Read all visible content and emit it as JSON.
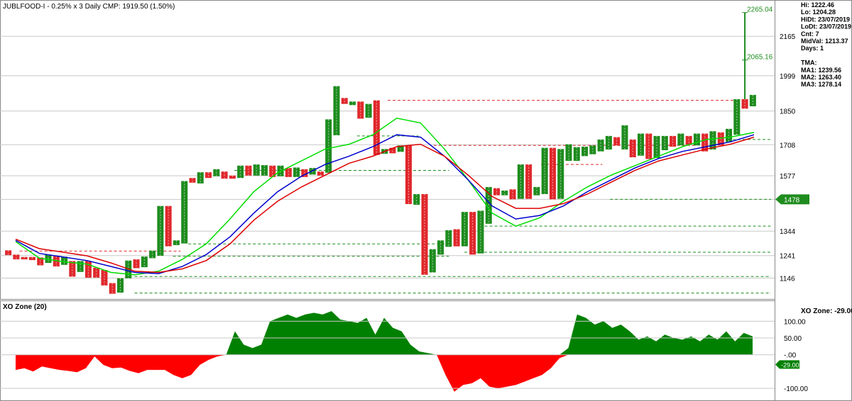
{
  "header": {
    "title": "JUBLFOOD-I - 0.25% x 3 Daily CMP: 1919.50 (1.50%)"
  },
  "info_panel": {
    "lines": [
      "Hi: 1222.46",
      "Lo: 1204.28",
      "HiDt: 23/07/2019",
      "LoDt: 23/07/2019",
      "Cnt: 7",
      "MidVal: 1213.37",
      "Days: 1",
      "",
      "TMA:",
      "MA1: 1239.56",
      "MA2: 1263.40",
      "MA3: 1278.14"
    ]
  },
  "xo_panel": {
    "title": "XO Zone (20)",
    "readout": "XO Zone: -29.00",
    "current_badge": "-29.00"
  },
  "colors": {
    "up": "#1e8c1e",
    "down": "#e0282c",
    "ma_fast": "#00dd00",
    "ma_mid": "#0000cc",
    "ma_slow": "#dd0000",
    "grid": "#c8c8c8"
  },
  "chart_data": [
    {
      "type": "point-and-figure",
      "title": "JUBLFOOD-I - 0.25% x 3 Daily CMP: 1919.50 (1.50%)",
      "y_ticks": [
        "2165",
        "1999",
        "1850",
        "1708",
        "1577",
        "1478",
        "1344",
        "1241",
        "1146"
      ],
      "ylim": [
        1070,
        2300
      ],
      "price_badge": "1478",
      "annotations": [
        "2265.04",
        "2065.16"
      ],
      "columns": [
        {
          "dir": "down",
          "low": 1243,
          "high": 1263
        },
        {
          "dir": "down",
          "low": 1225,
          "high": 1245
        },
        {
          "dir": "down",
          "low": 1225,
          "high": 1235
        },
        {
          "dir": "down",
          "low": 1222,
          "high": 1235
        },
        {
          "dir": "down",
          "low": 1200,
          "high": 1233
        },
        {
          "dir": "up",
          "low": 1210,
          "high": 1245
        },
        {
          "dir": "down",
          "low": 1195,
          "high": 1238
        },
        {
          "dir": "up",
          "low": 1202,
          "high": 1236
        },
        {
          "dir": "down",
          "low": 1152,
          "high": 1218
        },
        {
          "dir": "up",
          "low": 1172,
          "high": 1218
        },
        {
          "dir": "down",
          "low": 1148,
          "high": 1218
        },
        {
          "dir": "down",
          "low": 1148,
          "high": 1190
        },
        {
          "dir": "down",
          "low": 1115,
          "high": 1180
        },
        {
          "dir": "down",
          "low": 1080,
          "high": 1125
        },
        {
          "dir": "up",
          "low": 1085,
          "high": 1145
        },
        {
          "dir": "up",
          "low": 1145,
          "high": 1220
        },
        {
          "dir": "down",
          "low": 1188,
          "high": 1225
        },
        {
          "dir": "up",
          "low": 1192,
          "high": 1237
        },
        {
          "dir": "up",
          "low": 1230,
          "high": 1262
        },
        {
          "dir": "up",
          "low": 1240,
          "high": 1450
        },
        {
          "dir": "down",
          "low": 1280,
          "high": 1450
        },
        {
          "dir": "up",
          "low": 1285,
          "high": 1305
        },
        {
          "dir": "up",
          "low": 1292,
          "high": 1555
        },
        {
          "dir": "down",
          "low": 1548,
          "high": 1568
        },
        {
          "dir": "up",
          "low": 1545,
          "high": 1592
        },
        {
          "dir": "down",
          "low": 1568,
          "high": 1592
        },
        {
          "dir": "up",
          "low": 1575,
          "high": 1605
        },
        {
          "dir": "down",
          "low": 1565,
          "high": 1595
        },
        {
          "dir": "down",
          "low": 1565,
          "high": 1578
        },
        {
          "dir": "up",
          "low": 1568,
          "high": 1620
        },
        {
          "dir": "down",
          "low": 1578,
          "high": 1620
        },
        {
          "dir": "up",
          "low": 1578,
          "high": 1625
        },
        {
          "dir": "up",
          "low": 1578,
          "high": 1622
        },
        {
          "dir": "down",
          "low": 1572,
          "high": 1620
        },
        {
          "dir": "up",
          "low": 1575,
          "high": 1620
        },
        {
          "dir": "down",
          "low": 1572,
          "high": 1610
        },
        {
          "dir": "up",
          "low": 1572,
          "high": 1612
        },
        {
          "dir": "down",
          "low": 1572,
          "high": 1605
        },
        {
          "dir": "up",
          "low": 1582,
          "high": 1610
        },
        {
          "dir": "down",
          "low": 1578,
          "high": 1595
        },
        {
          "dir": "up",
          "low": 1590,
          "high": 1815
        },
        {
          "dir": "up",
          "low": 1748,
          "high": 1955
        },
        {
          "dir": "down",
          "low": 1880,
          "high": 1905
        },
        {
          "dir": "up",
          "low": 1875,
          "high": 1890
        },
        {
          "dir": "down",
          "low": 1818,
          "high": 1890
        },
        {
          "dir": "up",
          "low": 1822,
          "high": 1880
        },
        {
          "dir": "down",
          "low": 1665,
          "high": 1895
        },
        {
          "dir": "up",
          "low": 1670,
          "high": 1690
        },
        {
          "dir": "down",
          "low": 1672,
          "high": 1695
        },
        {
          "dir": "up",
          "low": 1678,
          "high": 1705
        },
        {
          "dir": "down",
          "low": 1458,
          "high": 1705
        },
        {
          "dir": "up",
          "low": 1455,
          "high": 1500
        },
        {
          "dir": "down",
          "low": 1160,
          "high": 1500
        },
        {
          "dir": "up",
          "low": 1170,
          "high": 1268
        },
        {
          "dir": "up",
          "low": 1245,
          "high": 1305
        },
        {
          "dir": "up",
          "low": 1278,
          "high": 1348
        },
        {
          "dir": "down",
          "low": 1280,
          "high": 1352
        },
        {
          "dir": "up",
          "low": 1280,
          "high": 1425
        },
        {
          "dir": "down",
          "low": 1245,
          "high": 1425
        },
        {
          "dir": "up",
          "low": 1250,
          "high": 1430
        },
        {
          "dir": "up",
          "low": 1375,
          "high": 1530
        },
        {
          "dir": "down",
          "low": 1495,
          "high": 1525
        },
        {
          "dir": "up",
          "low": 1495,
          "high": 1515
        },
        {
          "dir": "down",
          "low": 1478,
          "high": 1520
        },
        {
          "dir": "up",
          "low": 1480,
          "high": 1625
        },
        {
          "dir": "down",
          "low": 1480,
          "high": 1625
        },
        {
          "dir": "up",
          "low": 1495,
          "high": 1530
        },
        {
          "dir": "up",
          "low": 1500,
          "high": 1695
        },
        {
          "dir": "down",
          "low": 1478,
          "high": 1695
        },
        {
          "dir": "up",
          "low": 1480,
          "high": 1690
        },
        {
          "dir": "up",
          "low": 1640,
          "high": 1710
        },
        {
          "dir": "up",
          "low": 1640,
          "high": 1698
        },
        {
          "dir": "up",
          "low": 1660,
          "high": 1700
        },
        {
          "dir": "up",
          "low": 1668,
          "high": 1705
        },
        {
          "dir": "up",
          "low": 1680,
          "high": 1730
        },
        {
          "dir": "up",
          "low": 1688,
          "high": 1745
        },
        {
          "dir": "down",
          "low": 1705,
          "high": 1740
        },
        {
          "dir": "up",
          "low": 1688,
          "high": 1790
        },
        {
          "dir": "down",
          "low": 1655,
          "high": 1730
        },
        {
          "dir": "up",
          "low": 1662,
          "high": 1755
        },
        {
          "dir": "down",
          "low": 1648,
          "high": 1755
        },
        {
          "dir": "up",
          "low": 1652,
          "high": 1745
        },
        {
          "dir": "up",
          "low": 1685,
          "high": 1745
        },
        {
          "dir": "down",
          "low": 1700,
          "high": 1745
        },
        {
          "dir": "up",
          "low": 1705,
          "high": 1755
        },
        {
          "dir": "down",
          "low": 1708,
          "high": 1745
        },
        {
          "dir": "up",
          "low": 1705,
          "high": 1755
        },
        {
          "dir": "down",
          "low": 1680,
          "high": 1755
        },
        {
          "dir": "up",
          "low": 1688,
          "high": 1765
        },
        {
          "dir": "down",
          "low": 1705,
          "high": 1760
        },
        {
          "dir": "up",
          "low": 1720,
          "high": 1775
        },
        {
          "dir": "up",
          "low": 1750,
          "high": 1900
        },
        {
          "dir": "down",
          "low": 1860,
          "high": 1900
        },
        {
          "dir": "up",
          "low": 1870,
          "high": 1918
        }
      ],
      "spike": {
        "x_index": 92,
        "low": 1900,
        "mid": 2065.16,
        "high": 2265.04
      },
      "ma_series": [
        {
          "color_key": "ma_fast",
          "values": [
            1300,
            1230,
            1215,
            1205,
            1170,
            1160,
            1175,
            1225,
            1290,
            1395,
            1510,
            1590,
            1640,
            1690,
            1710,
            1750,
            1820,
            1800,
            1690,
            1560,
            1420,
            1365,
            1400,
            1470,
            1530,
            1580,
            1620,
            1660,
            1700,
            1730,
            1740,
            1760
          ]
        },
        {
          "color_key": "ma_mid",
          "values": [
            1305,
            1250,
            1235,
            1220,
            1195,
            1170,
            1165,
            1195,
            1245,
            1320,
            1420,
            1510,
            1575,
            1625,
            1660,
            1700,
            1750,
            1740,
            1660,
            1560,
            1450,
            1395,
            1410,
            1450,
            1510,
            1560,
            1610,
            1650,
            1680,
            1700,
            1720,
            1750
          ]
        },
        {
          "color_key": "ma_slow",
          "values": [
            1310,
            1270,
            1255,
            1240,
            1210,
            1175,
            1170,
            1185,
            1220,
            1290,
            1390,
            1470,
            1530,
            1580,
            1630,
            1660,
            1700,
            1710,
            1660,
            1580,
            1490,
            1440,
            1440,
            1460,
            1500,
            1550,
            1600,
            1640,
            1665,
            1690,
            1710,
            1740
          ]
        }
      ],
      "dashed_levels": [
        {
          "value": 1260,
          "color": "red",
          "x_from": 0.02,
          "x_to": 0.23
        },
        {
          "value": 1895,
          "color": "red",
          "x_from": 0.5,
          "x_to": 0.96
        },
        {
          "value": 1705,
          "color": "red",
          "x_from": 0.56,
          "x_to": 0.9
        },
        {
          "value": 1625,
          "color": "red",
          "x_from": 0.7,
          "x_to": 0.78
        },
        {
          "value": 1730,
          "color": "green",
          "x_from": 0.95,
          "x_to": 1.0
        },
        {
          "value": 1600,
          "color": "green",
          "x_from": 0.3,
          "x_to": 0.58
        },
        {
          "value": 1478,
          "color": "green",
          "x_from": 0.79,
          "x_to": 1.0
        },
        {
          "value": 1365,
          "color": "green",
          "x_from": 0.62,
          "x_to": 1.0
        },
        {
          "value": 1290,
          "color": "green",
          "x_from": 0.24,
          "x_to": 0.58
        },
        {
          "value": 1255,
          "color": "green",
          "x_from": 0.6,
          "x_to": 1.0
        },
        {
          "value": 1238,
          "color": "green",
          "x_from": 0.22,
          "x_to": 0.58
        },
        {
          "value": 1153,
          "color": "green",
          "x_from": 0.17,
          "x_to": 1.0
        },
        {
          "value": 1083,
          "color": "green",
          "x_from": 0.17,
          "x_to": 1.0
        },
        {
          "value": 1745,
          "color": "green",
          "x_from": 0.46,
          "x_to": 0.54
        }
      ]
    },
    {
      "type": "area",
      "title": "XO Zone (20)",
      "y_ticks": [
        "100.00",
        "50.00",
        "-.00",
        "-100.00"
      ],
      "ylim": [
        -125,
        145
      ],
      "values": [
        -45,
        -40,
        -50,
        -35,
        -40,
        -45,
        -48,
        -52,
        -40,
        -5,
        -30,
        -40,
        -38,
        -48,
        -55,
        -45,
        -45,
        -45,
        -60,
        -70,
        -60,
        -30,
        -15,
        -5,
        0,
        70,
        30,
        20,
        30,
        100,
        110,
        120,
        110,
        120,
        125,
        120,
        130,
        105,
        100,
        95,
        110,
        60,
        110,
        80,
        70,
        30,
        10,
        5,
        0,
        -60,
        -110,
        -90,
        -85,
        -70,
        -95,
        -100,
        -95,
        -90,
        -80,
        -70,
        -60,
        -40,
        -10,
        20,
        120,
        110,
        90,
        100,
        80,
        90,
        70,
        45,
        55,
        40,
        60,
        50,
        45,
        55,
        40,
        60,
        45,
        70,
        40,
        65,
        55
      ]
    }
  ]
}
